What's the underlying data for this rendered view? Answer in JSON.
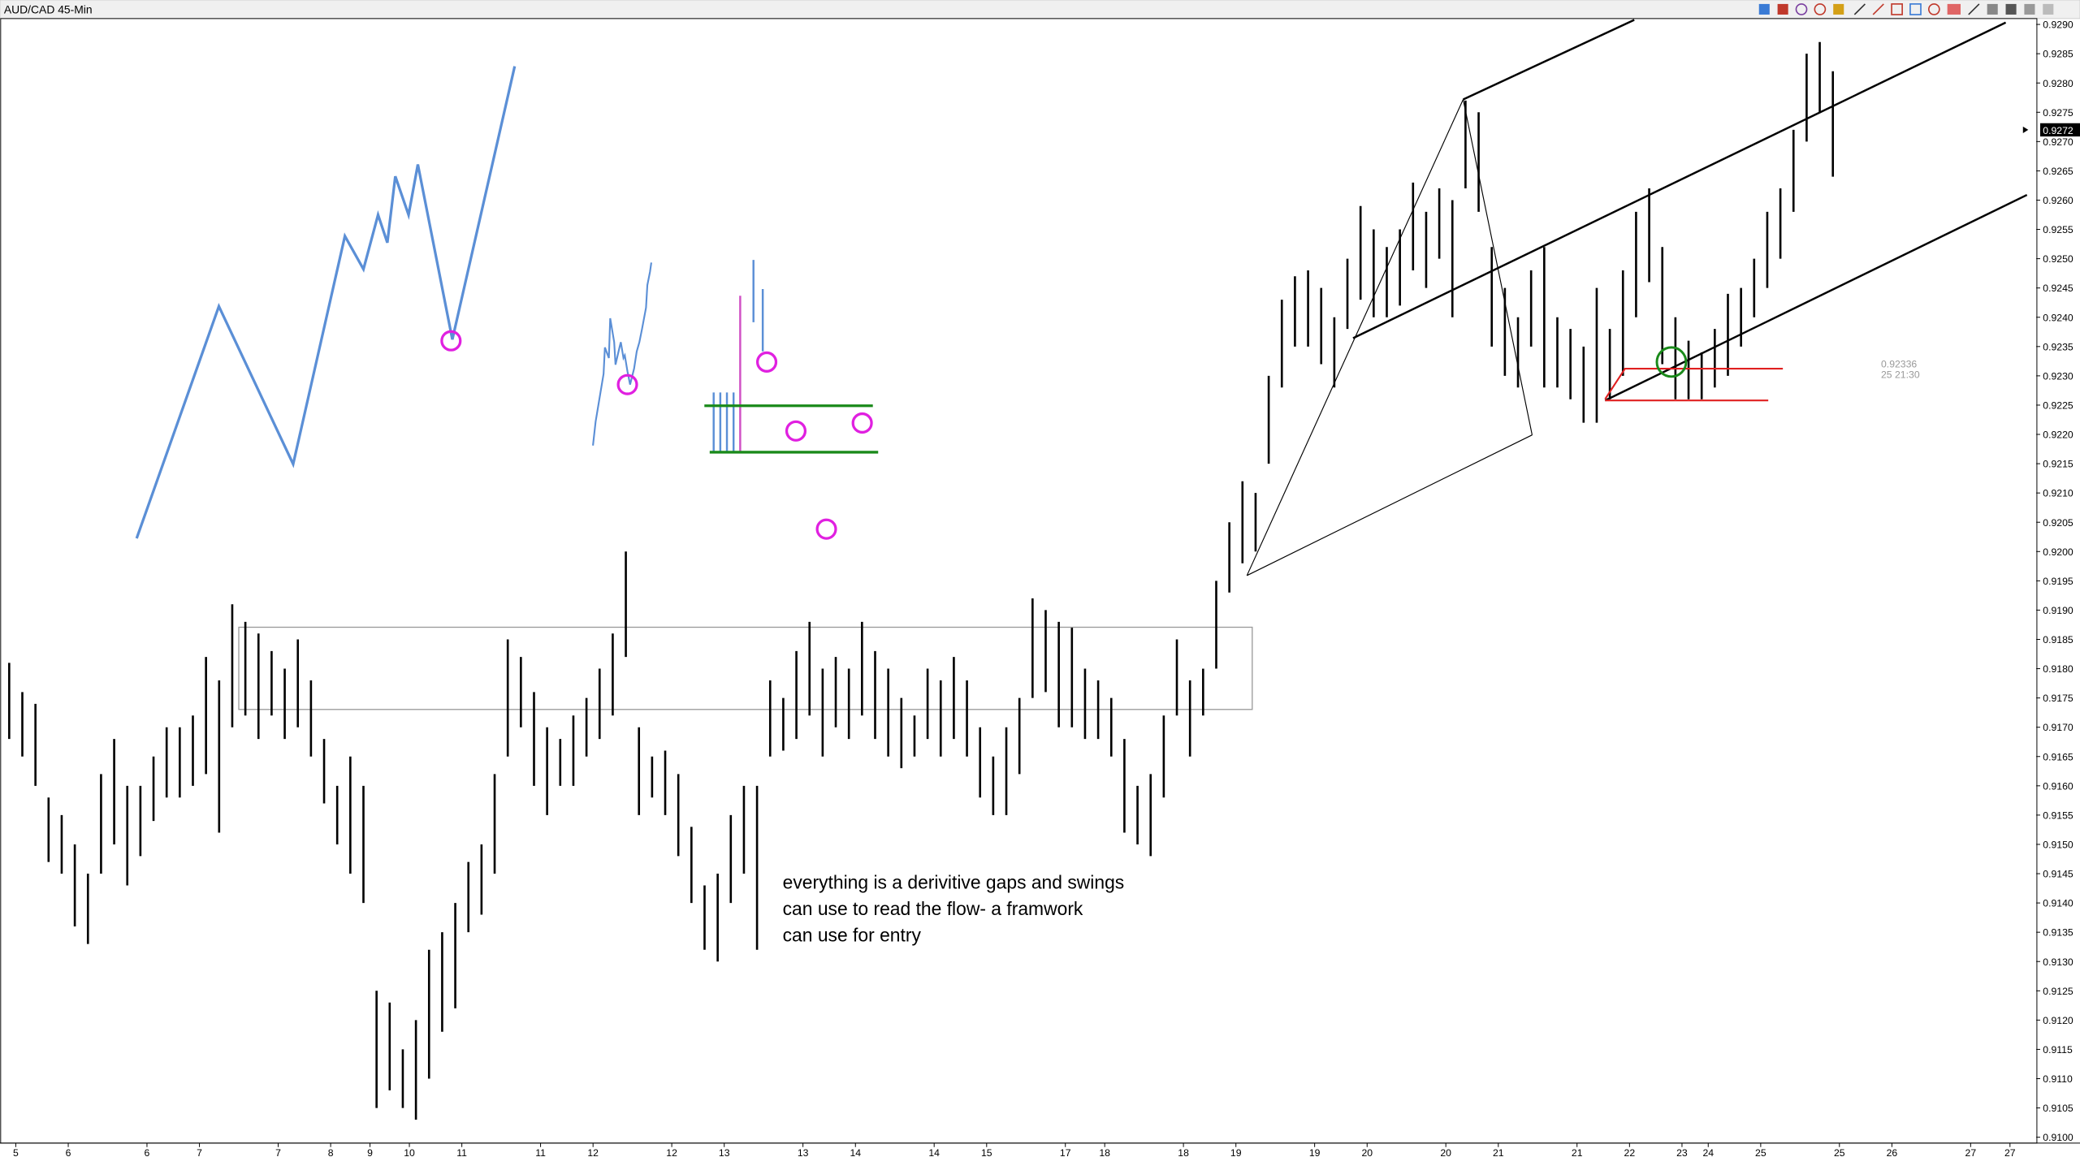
{
  "chart_data": {
    "type": "ohlc",
    "title": "AUD/CAD 45-Min",
    "high": [
      0.9181,
      0.9176,
      0.9174,
      0.9158,
      0.9155,
      0.915,
      0.9145,
      0.9162,
      0.9168,
      0.916,
      0.916,
      0.9165,
      0.917,
      0.917,
      0.9172,
      0.9182,
      0.9178,
      0.9191,
      0.9188,
      0.9186,
      0.9183,
      0.918,
      0.9185,
      0.9178,
      0.9168,
      0.916,
      0.9165,
      0.916,
      0.9125,
      0.9123,
      0.9115,
      0.912,
      0.9132,
      0.9135,
      0.914,
      0.9147,
      0.915,
      0.9162,
      0.9185,
      0.9182,
      0.9176,
      0.917,
      0.9168,
      0.9172,
      0.9175,
      0.918,
      0.9186,
      0.92,
      0.917,
      0.9165,
      0.9166,
      0.9162,
      0.9153,
      0.9143,
      0.9145,
      0.9155,
      0.916,
      0.916,
      0.9178,
      0.9175,
      0.9183,
      0.9188,
      0.918,
      0.9182,
      0.918,
      0.9188,
      0.9183,
      0.918,
      0.9175,
      0.9172,
      0.918,
      0.9178,
      0.9182,
      0.9178,
      0.917,
      0.9165,
      0.917,
      0.9175,
      0.9192,
      0.919,
      0.9188,
      0.9187,
      0.918,
      0.9178,
      0.9175,
      0.9168,
      0.916,
      0.9162,
      0.9172,
      0.9185,
      0.9178,
      0.918,
      0.9195,
      0.9205,
      0.9212,
      0.921,
      0.923,
      0.9243,
      0.9247,
      0.9248,
      0.9245,
      0.924,
      0.925,
      0.9259,
      0.9255,
      0.9252,
      0.9255,
      0.9263,
      0.9258,
      0.9262,
      0.926,
      0.9277,
      0.9275,
      0.9252,
      0.9245,
      0.924,
      0.9248,
      0.9252,
      0.924,
      0.9238,
      0.9235,
      0.9245,
      0.9238,
      0.9248,
      0.9258,
      0.9262,
      0.9252,
      0.924,
      0.9236,
      0.9234,
      0.9238,
      0.9244,
      0.9245,
      0.925,
      0.9258,
      0.9262,
      0.9272,
      0.9285,
      0.9287,
      0.9282
    ],
    "low": [
      0.9168,
      0.9165,
      0.916,
      0.9147,
      0.9145,
      0.9136,
      0.9133,
      0.9145,
      0.915,
      0.9143,
      0.9148,
      0.9154,
      0.9158,
      0.9158,
      0.916,
      0.9162,
      0.9152,
      0.917,
      0.9172,
      0.9168,
      0.9172,
      0.9168,
      0.917,
      0.9165,
      0.9157,
      0.915,
      0.9145,
      0.914,
      0.9105,
      0.9108,
      0.9105,
      0.9103,
      0.911,
      0.9118,
      0.9122,
      0.9135,
      0.9138,
      0.9145,
      0.9165,
      0.917,
      0.916,
      0.9155,
      0.916,
      0.916,
      0.9165,
      0.9168,
      0.9172,
      0.9182,
      0.9155,
      0.9158,
      0.9155,
      0.9148,
      0.914,
      0.9132,
      0.913,
      0.914,
      0.9145,
      0.9132,
      0.9165,
      0.9166,
      0.9168,
      0.9172,
      0.9165,
      0.917,
      0.9168,
      0.9172,
      0.9168,
      0.9165,
      0.9163,
      0.9165,
      0.9168,
      0.9165,
      0.9168,
      0.9165,
      0.9158,
      0.9155,
      0.9155,
      0.9162,
      0.9175,
      0.9176,
      0.917,
      0.917,
      0.9168,
      0.9168,
      0.9165,
      0.9152,
      0.915,
      0.9148,
      0.9158,
      0.9172,
      0.9165,
      0.9172,
      0.918,
      0.9193,
      0.9198,
      0.92,
      0.9215,
      0.9228,
      0.9235,
      0.9235,
      0.9232,
      0.9228,
      0.9238,
      0.9243,
      0.924,
      0.924,
      0.9242,
      0.9248,
      0.9245,
      0.925,
      0.924,
      0.9262,
      0.9258,
      0.9235,
      0.923,
      0.9228,
      0.9235,
      0.9228,
      0.9228,
      0.9226,
      0.9222,
      0.9222,
      0.9226,
      0.923,
      0.924,
      0.9246,
      0.9232,
      0.9226,
      0.9226,
      0.9226,
      0.9228,
      0.923,
      0.9235,
      0.924,
      0.9245,
      0.925,
      0.9258,
      0.927,
      0.9275,
      0.9264
    ],
    "color": "#000000",
    "xlim": [
      0,
      155
    ],
    "xticks": [
      {
        "value": 1,
        "label": "5"
      },
      {
        "value": 5,
        "label": "6"
      },
      {
        "value": 11,
        "label": "6"
      },
      {
        "value": 15,
        "label": "7"
      },
      {
        "value": 21,
        "label": "7"
      },
      {
        "value": 25,
        "label": "8"
      },
      {
        "value": 28,
        "label": "9"
      },
      {
        "value": 31,
        "label": "10"
      },
      {
        "value": 35,
        "label": "11"
      },
      {
        "value": 41,
        "label": "11"
      },
      {
        "value": 45,
        "label": "12"
      },
      {
        "value": 51,
        "label": "12"
      },
      {
        "value": 55,
        "label": "13"
      },
      {
        "value": 61,
        "label": "13"
      },
      {
        "value": 65,
        "label": "14"
      },
      {
        "value": 71,
        "label": "14"
      },
      {
        "value": 75,
        "label": "15"
      },
      {
        "value": 81,
        "label": "17"
      },
      {
        "value": 84,
        "label": "18"
      },
      {
        "value": 90,
        "label": "18"
      },
      {
        "value": 94,
        "label": "19"
      },
      {
        "value": 100,
        "label": "19"
      },
      {
        "value": 104,
        "label": "20"
      },
      {
        "value": 110,
        "label": "20"
      },
      {
        "value": 114,
        "label": "21"
      },
      {
        "value": 120,
        "label": "21"
      },
      {
        "value": 124,
        "label": "22"
      },
      {
        "value": 128,
        "label": "23"
      },
      {
        "value": 130,
        "label": "24"
      },
      {
        "value": 134,
        "label": "25"
      },
      {
        "value": 140,
        "label": "25"
      },
      {
        "value": 144,
        "label": "26"
      },
      {
        "value": 150,
        "label": "27"
      },
      {
        "value": 153,
        "label": "27"
      }
    ],
    "ylim": [
      0.9099,
      0.9291
    ],
    "yticks": [
      {
        "value": 0.91,
        "label": "0.9100"
      },
      {
        "value": 0.9105,
        "label": "0.9105"
      },
      {
        "value": 0.911,
        "label": "0.9110"
      },
      {
        "value": 0.9115,
        "label": "0.9115"
      },
      {
        "value": 0.912,
        "label": "0.9120"
      },
      {
        "value": 0.9125,
        "label": "0.9125"
      },
      {
        "value": 0.913,
        "label": "0.9130"
      },
      {
        "value": 0.9135,
        "label": "0.9135"
      },
      {
        "value": 0.914,
        "label": "0.9140"
      },
      {
        "value": 0.9145,
        "label": "0.9145"
      },
      {
        "value": 0.915,
        "label": "0.9150"
      },
      {
        "value": 0.9155,
        "label": "0.9155"
      },
      {
        "value": 0.916,
        "label": "0.9160"
      },
      {
        "value": 0.9165,
        "label": "0.9165"
      },
      {
        "value": 0.917,
        "label": "0.9170"
      },
      {
        "value": 0.9175,
        "label": "0.9175"
      },
      {
        "value": 0.918,
        "label": "0.9180"
      },
      {
        "value": 0.9185,
        "label": "0.9185"
      },
      {
        "value": 0.919,
        "label": "0.9190"
      },
      {
        "value": 0.9195,
        "label": "0.9195"
      },
      {
        "value": 0.92,
        "label": "0.9200"
      },
      {
        "value": 0.9205,
        "label": "0.9205"
      },
      {
        "value": 0.921,
        "label": "0.9210"
      },
      {
        "value": 0.9215,
        "label": "0.9215"
      },
      {
        "value": 0.922,
        "label": "0.9220"
      },
      {
        "value": 0.9225,
        "label": "0.9225"
      },
      {
        "value": 0.923,
        "label": "0.9230"
      },
      {
        "value": 0.9235,
        "label": "0.9235"
      },
      {
        "value": 0.924,
        "label": "0.9240"
      },
      {
        "value": 0.9245,
        "label": "0.9245"
      },
      {
        "value": 0.925,
        "label": "0.9250"
      },
      {
        "value": 0.9255,
        "label": "0.9255"
      },
      {
        "value": 0.926,
        "label": "0.9260"
      },
      {
        "value": 0.9265,
        "label": "0.9265"
      },
      {
        "value": 0.927,
        "label": "0.9270"
      },
      {
        "value": 0.9275,
        "label": "0.9275"
      },
      {
        "value": 0.928,
        "label": "0.9280"
      },
      {
        "value": 0.9285,
        "label": "0.9285"
      },
      {
        "value": 0.929,
        "label": "0.9290"
      }
    ],
    "last_price": 0.9272,
    "cursor_readout": [
      "0.92336",
      "25 21:30"
    ],
    "annotation": [
      "everything is a derivitive gaps and swings",
      "can use to read the flow- a framwork",
      "can use for entry"
    ]
  }
}
